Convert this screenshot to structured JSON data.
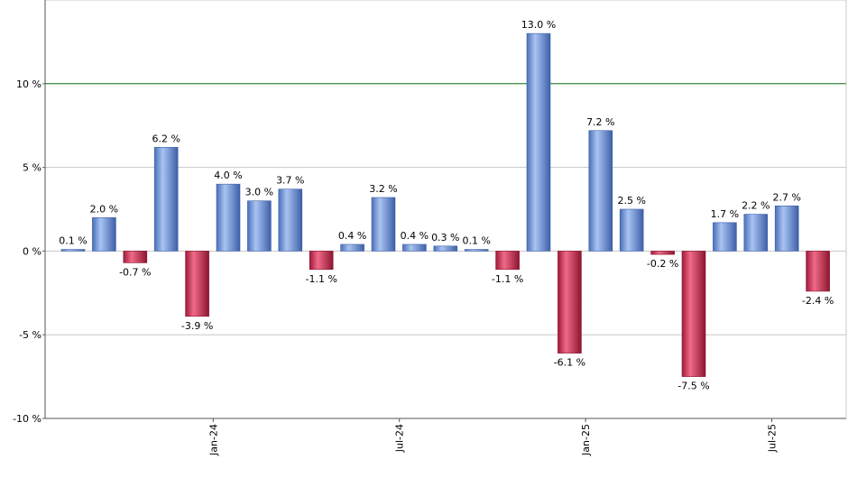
{
  "chart_data": {
    "type": "bar",
    "title": "",
    "xlabel": "",
    "ylabel": "",
    "ylim": [
      -10,
      15
    ],
    "y_ticks": [
      {
        "value": 10,
        "label": "10 %"
      },
      {
        "value": 5,
        "label": "5 %"
      },
      {
        "value": 0,
        "label": "0 %"
      },
      {
        "value": -5,
        "label": "-5 %"
      },
      {
        "value": -10,
        "label": "-10 %"
      }
    ],
    "x_ticks": [
      {
        "after_bar": 5,
        "label": "Jan-24"
      },
      {
        "after_bar": 11,
        "label": "Jul-24"
      },
      {
        "after_bar": 17,
        "label": "Jan-25"
      },
      {
        "after_bar": 23,
        "label": "Jul-25"
      }
    ],
    "reference_line": {
      "value": 10,
      "color": "#1a7a1a"
    },
    "grid": true,
    "positive_color": "#6f95d8",
    "negative_color": "#d8365c",
    "values": [
      0.1,
      2.0,
      -0.7,
      6.2,
      -3.9,
      4.0,
      3.0,
      3.7,
      -1.1,
      0.4,
      3.2,
      0.4,
      0.3,
      0.1,
      -1.1,
      13.0,
      -6.1,
      7.2,
      2.5,
      -0.2,
      -7.5,
      1.7,
      2.2,
      2.7,
      -2.4
    ],
    "labels": [
      "0.1 %",
      "2.0 %",
      "-0.7 %",
      "6.2 %",
      "-3.9 %",
      "4.0 %",
      "3.0 %",
      "3.7 %",
      "-1.1 %",
      "0.4 %",
      "3.2 %",
      "0.4 %",
      "0.3 %",
      "0.1 %",
      "-1.1 %",
      "13.0 %",
      "-6.1 %",
      "7.2 %",
      "2.5 %",
      "-0.2 %",
      "-7.5 %",
      "1.7 %",
      "2.2 %",
      "2.7 %",
      "-2.4 %"
    ]
  }
}
